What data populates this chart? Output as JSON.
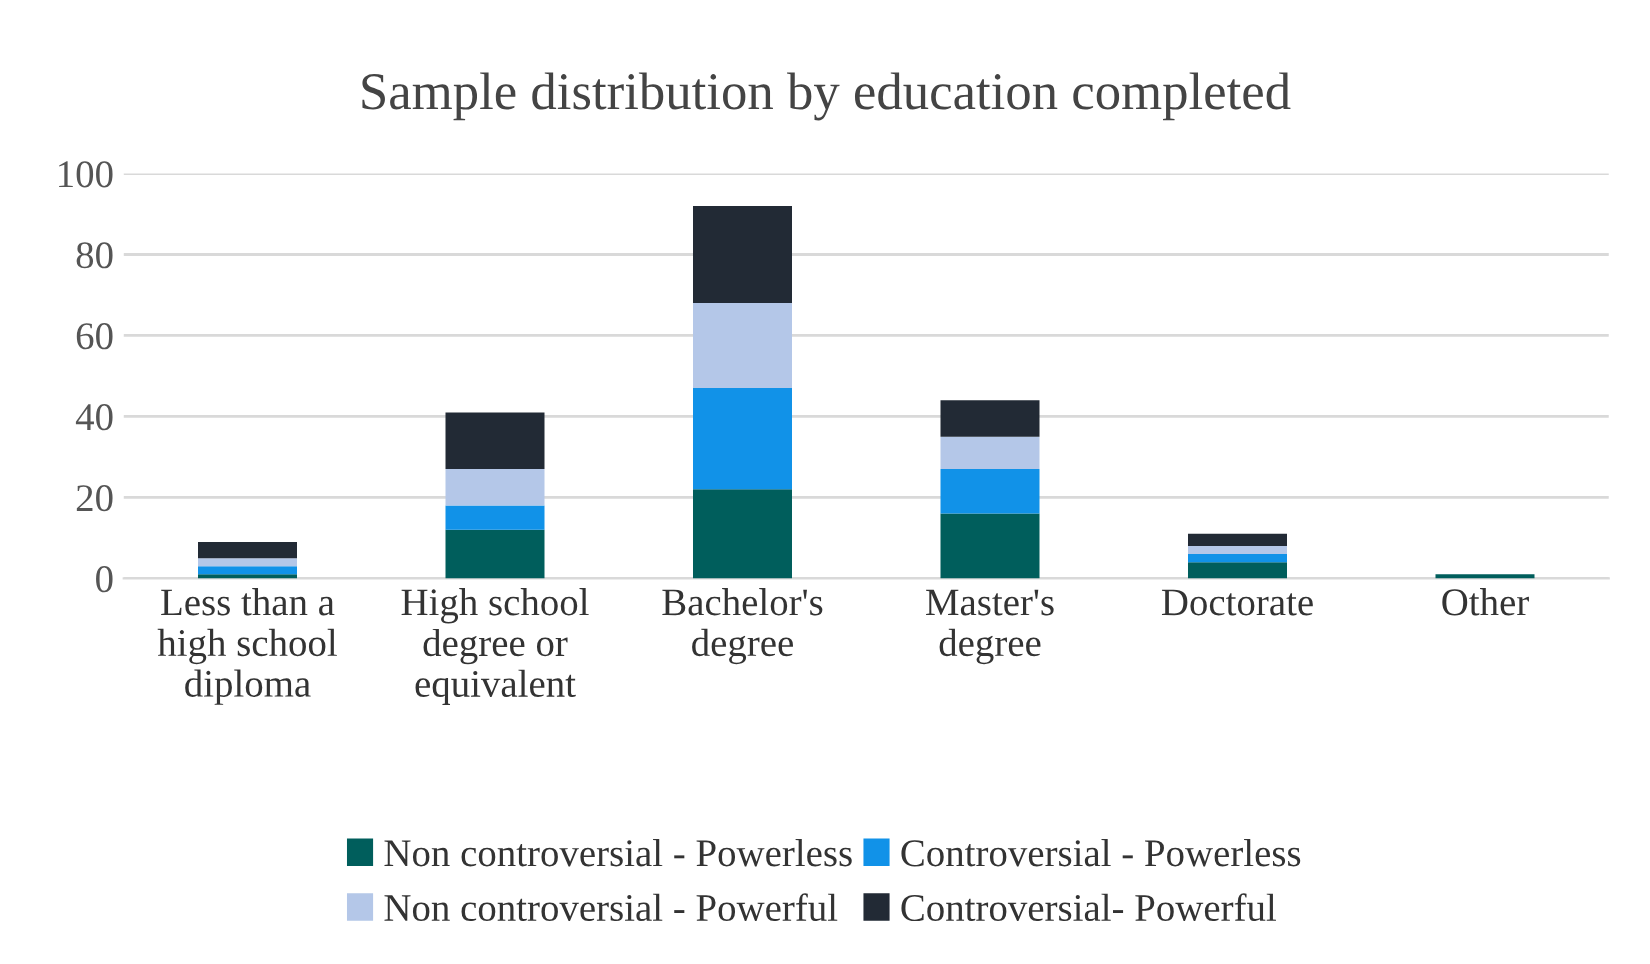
{
  "chart_data": {
    "type": "bar",
    "title": "Sample distribution by education completed",
    "categories": [
      "Less than a\nhigh school\ndiploma",
      "High school\ndegree or\nequivalent",
      "Bachelor's\ndegree",
      "Master's\ndegree",
      "Doctorate",
      "Other"
    ],
    "series": [
      {
        "name": "Non controversial - Powerless",
        "color": "#005e5c",
        "values": [
          1,
          12,
          22,
          16,
          4,
          1
        ]
      },
      {
        "name": "Controversial - Powerless",
        "color": "#1192e8",
        "values": [
          2,
          6,
          25,
          11,
          2,
          0
        ]
      },
      {
        "name": "Non controversial - Powerful",
        "color": "#b4c7e8",
        "values": [
          2,
          9,
          21,
          8,
          2,
          0
        ]
      },
      {
        "name": "Controversial- Powerful",
        "color": "#222a35",
        "values": [
          4,
          14,
          24,
          9,
          3,
          0
        ]
      }
    ],
    "stacked": true,
    "ylim": [
      0,
      100
    ],
    "yticks": [
      0,
      20,
      40,
      60,
      80,
      100
    ],
    "grid": "y",
    "legend": "bottom"
  }
}
